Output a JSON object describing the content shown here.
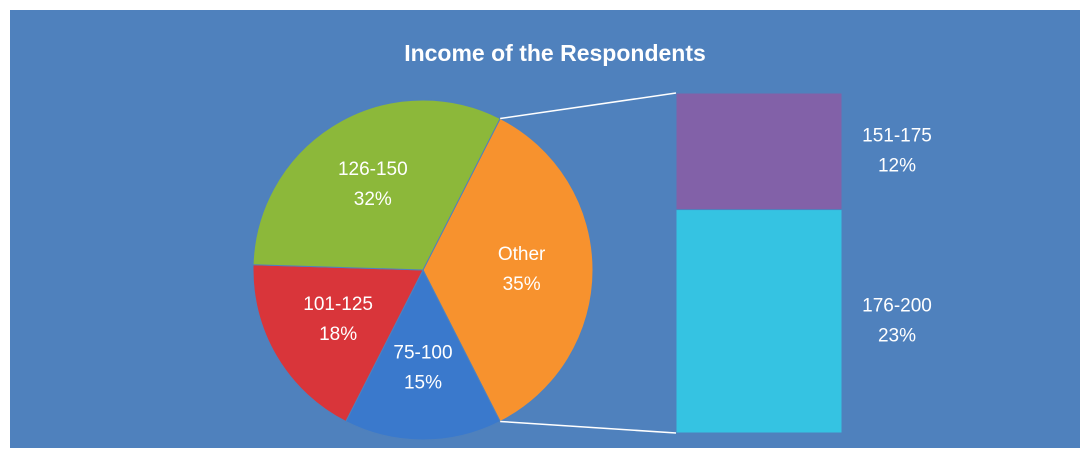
{
  "chart_data": {
    "type": "pie",
    "title": "Income of the Respondents",
    "categories": [
      "Other",
      "75-100",
      "101-125",
      "126-150"
    ],
    "values": [
      35,
      15,
      18,
      32
    ],
    "value_labels": [
      "35%",
      "15%",
      "18%",
      "32%"
    ],
    "colors": [
      "#f7922e",
      "#3a79cc",
      "#d9353a",
      "#8cb83a"
    ],
    "secondary": {
      "categories": [
        "151-175",
        "176-200"
      ],
      "values": [
        12,
        23
      ],
      "value_labels": [
        "12%",
        "23%"
      ],
      "colors": [
        "#8261a8",
        "#35c3e2"
      ]
    }
  }
}
